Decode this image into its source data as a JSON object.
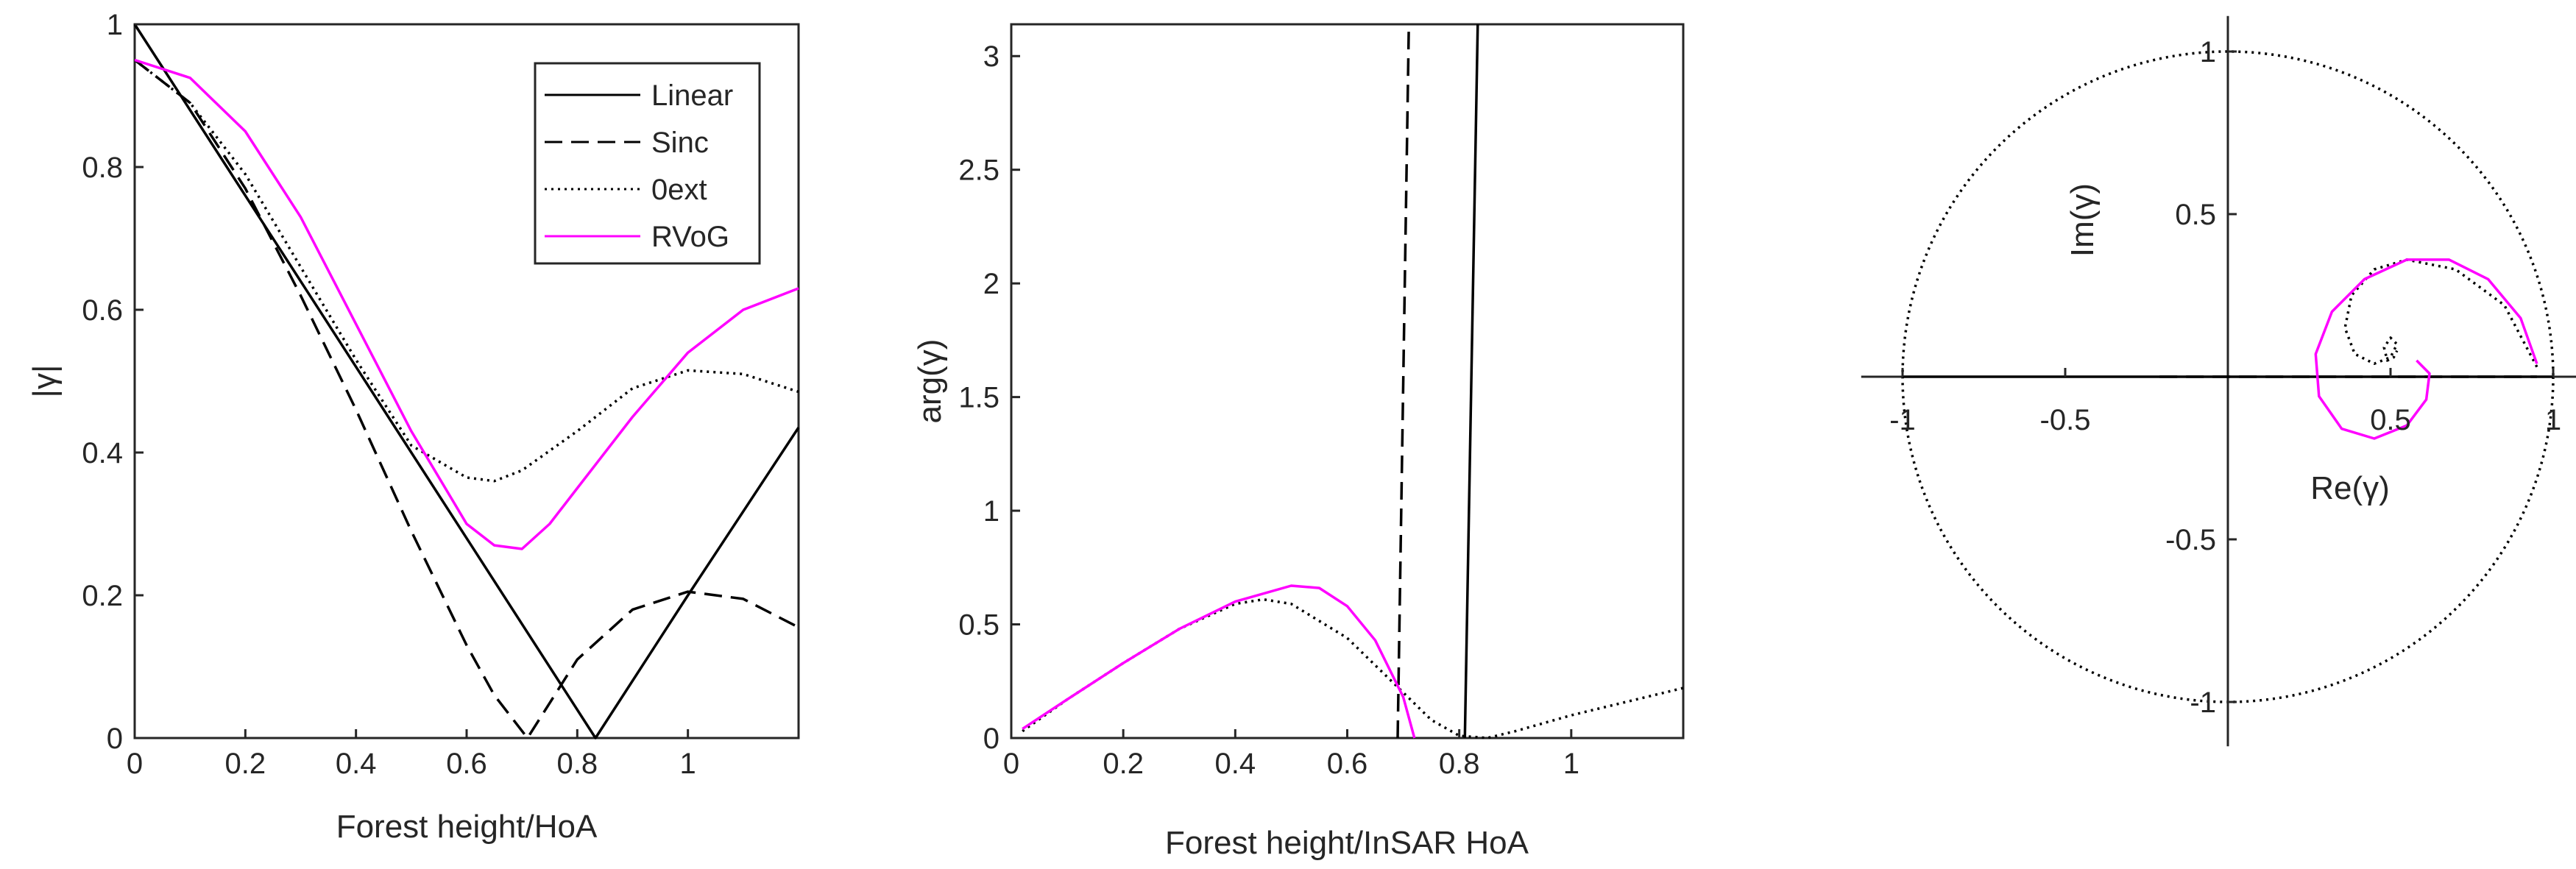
{
  "legend": {
    "entries": [
      {
        "label": "Linear",
        "style": "solid",
        "color": "#000000"
      },
      {
        "label": "Sinc",
        "style": "dashed",
        "color": "#000000"
      },
      {
        "label": "0ext",
        "style": "dotted",
        "color": "#000000"
      },
      {
        "label": "RVoG",
        "style": "solid",
        "color": "#ff00ff"
      }
    ],
    "placement": "top-right of left panel"
  },
  "symbols": {
    "gamma": "γ"
  },
  "chart_data": [
    {
      "type": "line",
      "id": "magnitude",
      "title": "",
      "xlabel": "Forest height/HoA",
      "ylabel": "|γ|",
      "xlim": [
        0,
        1.2
      ],
      "ylim": [
        0,
        1
      ],
      "xticks": [
        0,
        0.2,
        0.4,
        0.6,
        0.8,
        1
      ],
      "yticks": [
        0,
        0.2,
        0.4,
        0.6,
        0.8,
        1
      ],
      "xtick_labels": [
        "0",
        "0.2",
        "0.4",
        "0.6",
        "0.8",
        "1"
      ],
      "ytick_labels": [
        "0",
        "0.2",
        "0.4",
        "0.6",
        "0.8",
        "1"
      ],
      "series": [
        {
          "name": "Linear",
          "x": [
            0,
            0.2,
            0.4,
            0.6,
            0.833,
            1.0,
            1.2
          ],
          "y": [
            1.0,
            0.76,
            0.52,
            0.28,
            0.0,
            0.2,
            0.435
          ]
        },
        {
          "name": "Sinc",
          "x": [
            0.0,
            0.1,
            0.2,
            0.3,
            0.4,
            0.5,
            0.6,
            0.65,
            0.71,
            0.8,
            0.9,
            1.0,
            1.1,
            1.2
          ],
          "y": [
            0.95,
            0.89,
            0.77,
            0.62,
            0.46,
            0.29,
            0.13,
            0.06,
            0.0,
            0.11,
            0.18,
            0.205,
            0.195,
            0.155
          ]
        },
        {
          "name": "0ext",
          "x": [
            0.0,
            0.1,
            0.2,
            0.3,
            0.4,
            0.5,
            0.6,
            0.65,
            0.7,
            0.8,
            0.9,
            1.0,
            1.1,
            1.2
          ],
          "y": [
            0.95,
            0.89,
            0.79,
            0.66,
            0.53,
            0.41,
            0.365,
            0.36,
            0.375,
            0.43,
            0.49,
            0.515,
            0.51,
            0.485
          ]
        },
        {
          "name": "RVoG",
          "x": [
            0.0,
            0.1,
            0.2,
            0.3,
            0.4,
            0.5,
            0.6,
            0.65,
            0.7,
            0.75,
            0.8,
            0.9,
            1.0,
            1.1,
            1.2
          ],
          "y": [
            0.95,
            0.925,
            0.85,
            0.73,
            0.58,
            0.43,
            0.3,
            0.27,
            0.265,
            0.3,
            0.35,
            0.45,
            0.54,
            0.6,
            0.63
          ]
        }
      ]
    },
    {
      "type": "line",
      "id": "phase",
      "title": "",
      "xlabel": "Forest height/InSAR HoA",
      "ylabel": "arg(γ)",
      "xlim": [
        0,
        1.2
      ],
      "ylim": [
        0,
        3.14
      ],
      "xticks": [
        0,
        0.2,
        0.4,
        0.6,
        0.8,
        1
      ],
      "yticks": [
        0,
        0.5,
        1,
        1.5,
        2,
        2.5,
        3
      ],
      "xtick_labels": [
        "0",
        "0.2",
        "0.4",
        "0.6",
        "0.8",
        "1"
      ],
      "ytick_labels": [
        "0",
        "0.5",
        "1",
        "1.5",
        "2",
        "2.5",
        "3"
      ],
      "series": [
        {
          "name": "Linear",
          "x": [
            0.81,
            0.833
          ],
          "y": [
            0.0,
            3.14
          ]
        },
        {
          "name": "Sinc",
          "x": [
            0.69,
            0.71
          ],
          "y": [
            0.0,
            3.14
          ]
        },
        {
          "name": "0ext",
          "x": [
            0.02,
            0.1,
            0.2,
            0.3,
            0.4,
            0.45,
            0.5,
            0.6,
            0.7,
            0.75,
            0.8,
            0.85,
            0.9,
            1.0,
            1.1,
            1.2
          ],
          "y": [
            0.03,
            0.17,
            0.33,
            0.48,
            0.59,
            0.61,
            0.59,
            0.44,
            0.2,
            0.08,
            0.01,
            0.0,
            0.03,
            0.1,
            0.16,
            0.22
          ]
        },
        {
          "name": "RVoG",
          "x": [
            0.02,
            0.1,
            0.2,
            0.3,
            0.4,
            0.5,
            0.55,
            0.6,
            0.65,
            0.7,
            0.72
          ],
          "y": [
            0.04,
            0.17,
            0.33,
            0.48,
            0.6,
            0.67,
            0.66,
            0.58,
            0.43,
            0.18,
            0.0
          ]
        }
      ]
    },
    {
      "type": "scatter",
      "id": "complex-plane",
      "title": "",
      "xlabel": "Re(γ)",
      "ylabel": "Im(γ)",
      "xlim": [
        -1.1,
        1.1
      ],
      "ylim": [
        -1.1,
        1.1
      ],
      "xticks": [
        -1,
        -0.5,
        0.5,
        1
      ],
      "yticks": [
        -1,
        -0.5,
        0.5,
        1
      ],
      "xtick_labels": [
        "-1",
        "-0.5",
        "0.5",
        "1"
      ],
      "ytick_labels": [
        "-1",
        "-0.5",
        "0.5",
        "1"
      ],
      "series": [
        {
          "name": "Unit circle",
          "style": "dotted",
          "x": [
            1,
            0.707,
            0,
            -0.707,
            -1,
            -0.707,
            0,
            0.707,
            1
          ],
          "y": [
            0,
            0.707,
            1,
            0.707,
            0,
            -0.707,
            -1,
            -0.707,
            0
          ]
        },
        {
          "name": "Linear",
          "style": "solid",
          "x": [
            -1,
            1
          ],
          "y": [
            0,
            0
          ]
        },
        {
          "name": "Sinc",
          "style": "dashed",
          "x": [
            -0.21,
            0.95
          ],
          "y": [
            0,
            0
          ]
        },
        {
          "name": "0ext",
          "style": "dotted",
          "x": [
            0.95,
            0.85,
            0.7,
            0.55,
            0.45,
            0.38,
            0.36,
            0.39,
            0.45,
            0.5,
            0.52,
            0.5,
            0.48,
            0.49,
            0.51,
            0.52
          ],
          "y": [
            0.03,
            0.22,
            0.33,
            0.36,
            0.33,
            0.25,
            0.15,
            0.07,
            0.04,
            0.06,
            0.1,
            0.12,
            0.09,
            0.05,
            0.06,
            0.08
          ]
        },
        {
          "name": "RVoG",
          "style": "solid",
          "x": [
            0.95,
            0.9,
            0.8,
            0.68,
            0.55,
            0.42,
            0.32,
            0.27,
            0.28,
            0.35,
            0.45,
            0.55,
            0.61,
            0.62,
            0.58
          ],
          "y": [
            0.04,
            0.18,
            0.3,
            0.36,
            0.36,
            0.3,
            0.2,
            0.07,
            -0.06,
            -0.16,
            -0.19,
            -0.15,
            -0.07,
            0.01,
            0.05
          ]
        }
      ]
    }
  ]
}
